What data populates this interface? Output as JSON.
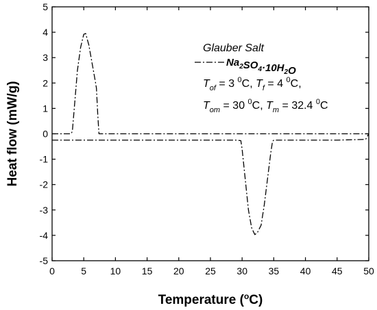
{
  "chart_data": {
    "type": "line",
    "title": "",
    "xlabel": "Temperature (°C)",
    "ylabel": "Heat flow (mW/g)",
    "xlim": [
      0,
      50
    ],
    "ylim": [
      -5,
      5
    ],
    "x_ticks": [
      0,
      5,
      10,
      15,
      20,
      25,
      30,
      35,
      40,
      45,
      50
    ],
    "y_ticks": [
      -5,
      -4,
      -3,
      -2,
      -1,
      0,
      1,
      2,
      3,
      4,
      5
    ],
    "grid": false,
    "legend_position": "top-right",
    "legend_title": "Glauber Salt",
    "legend_series_label": "Na2SO4·10H2O",
    "line_style": "dash-dot",
    "line_color": "#000000",
    "series": [
      {
        "name": "Na2SO4·10H2O",
        "kind": "freezing",
        "x": [
          0,
          1,
          2,
          3,
          3.2,
          3.5,
          4.0,
          4.5,
          5.0,
          5.3,
          5.8,
          6.3,
          6.8,
          7.0,
          7.2,
          7.4,
          7.6,
          8,
          12,
          20,
          30,
          40,
          50
        ],
        "y": [
          0,
          0,
          0,
          0,
          0.1,
          1.0,
          2.5,
          3.4,
          3.92,
          3.95,
          3.5,
          2.8,
          2.1,
          1.8,
          0.8,
          0.0,
          0.0,
          0,
          0,
          0,
          0,
          0,
          0
        ]
      },
      {
        "name": "",
        "kind": "melting",
        "x": [
          0,
          5,
          10,
          20,
          29,
          29.8,
          30.0,
          30.5,
          31.0,
          31.5,
          32.0,
          32.4,
          33.0,
          33.5,
          34.0,
          34.5,
          34.8,
          35.0,
          36,
          40,
          45,
          49.5,
          50
        ],
        "y": [
          -0.25,
          -0.25,
          -0.25,
          -0.25,
          -0.25,
          -0.27,
          -0.6,
          -1.8,
          -3.0,
          -3.7,
          -3.97,
          -3.9,
          -3.6,
          -2.8,
          -1.8,
          -0.8,
          -0.3,
          -0.25,
          -0.25,
          -0.25,
          -0.25,
          -0.22,
          0.0
        ]
      }
    ],
    "annotations": [
      {
        "symbol": "T",
        "subscript": "of",
        "value": "3",
        "unit_sup": "0",
        "unit": "C"
      },
      {
        "symbol": "T",
        "subscript": "f",
        "value": "4",
        "unit_sup": "0",
        "unit": "C"
      },
      {
        "symbol": "T",
        "subscript": "om",
        "value": "30",
        "unit_sup": "0",
        "unit": "C"
      },
      {
        "symbol": "T",
        "subscript": "m",
        "value": "32.4",
        "unit_sup": "0",
        "unit": "C"
      }
    ]
  }
}
